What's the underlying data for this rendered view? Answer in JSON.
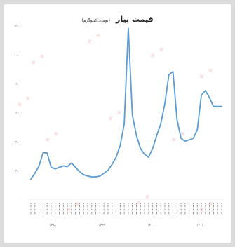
{
  "chart_data": {
    "type": "line",
    "title": "قیمت پیاز",
    "unit": "(تومان/کیلوگرم)",
    "xlabel": "",
    "ylabel": "",
    "ylim": [
      0,
      12000
    ],
    "yticks": [
      "۱۲,۰۰۰",
      "۱۰,۰۰۰",
      "۸,۰۰۰",
      "۶,۰۰۰",
      "۴,۰۰۰",
      "۲,۰۰۰",
      "۰"
    ],
    "grid": false,
    "legend": "none",
    "line_color": "#5b9bd5",
    "groups": [
      "۱۳۹۸",
      "۱۳۹۹",
      "۱۴۰۰",
      "۱۴۰۱"
    ],
    "x": [
      1,
      2,
      3,
      4,
      5,
      6,
      7,
      8,
      9,
      10,
      11,
      12,
      13,
      14,
      15,
      16,
      17,
      18,
      19,
      20,
      21,
      22,
      23,
      24,
      25,
      26,
      27,
      28,
      29,
      30,
      31,
      32,
      33,
      34,
      35,
      36,
      37,
      38,
      39,
      40,
      41,
      42,
      43,
      44,
      45,
      46,
      47,
      48
    ],
    "values": [
      1400,
      1800,
      2300,
      3200,
      3200,
      2200,
      2100,
      2200,
      2300,
      2250,
      2500,
      2200,
      1900,
      1700,
      1600,
      1550,
      1550,
      1600,
      1800,
      2000,
      2400,
      2900,
      3700,
      5200,
      11800,
      5800,
      4400,
      3500,
      3100,
      2900,
      3500,
      4400,
      5200,
      6600,
      8600,
      8800,
      5500,
      4200,
      4000,
      4100,
      4200,
      4800,
      7200,
      7500,
      7000,
      6400,
      6400,
      6400
    ]
  }
}
